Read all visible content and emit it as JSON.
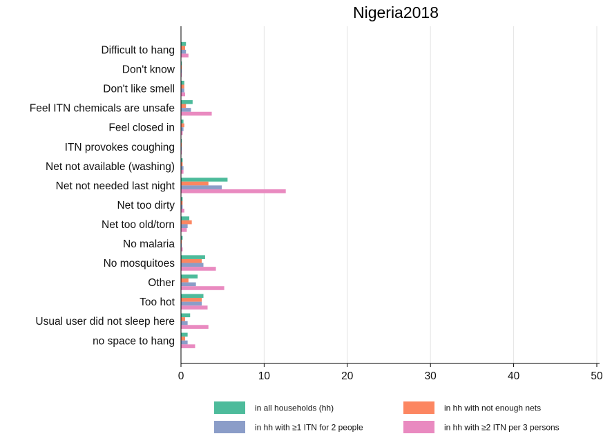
{
  "chart_data": {
    "type": "bar",
    "orientation": "horizontal",
    "title": "Nigeria2018",
    "xlabel": "",
    "ylabel": "",
    "xlim": [
      0,
      52
    ],
    "xticks": [
      0,
      10,
      20,
      30,
      40,
      50
    ],
    "grid": "vertical",
    "legend_position": "bottom",
    "categories": [
      "Difficult to hang",
      "Don't know",
      "Don't like smell",
      "Feel ITN chemicals are unsafe",
      "Feel closed in",
      "ITN provokes coughing",
      "Net not available (washing)",
      "Net not needed last night",
      "Net too dirty",
      "Net too old/torn",
      "No malaria",
      "No mosquitoes",
      "Other",
      "Too hot",
      "Usual user did not sleep here",
      "no space to hang"
    ],
    "series": [
      {
        "name": "in all households (hh)",
        "color": "#4dbb9b",
        "values": [
          0.6,
          0.1,
          0.4,
          1.4,
          0.3,
          0.1,
          0.2,
          5.6,
          0.2,
          1.0,
          0.2,
          2.9,
          2.0,
          2.7,
          1.1,
          0.8
        ]
      },
      {
        "name": "in hh with not enough nets",
        "color": "#fc8661",
        "values": [
          0.5,
          0.1,
          0.4,
          0.6,
          0.4,
          0.1,
          0.2,
          3.3,
          0.2,
          1.3,
          0.1,
          2.5,
          0.9,
          2.5,
          0.5,
          0.5
        ]
      },
      {
        "name": "in hh with ≥1 ITN for 2 people",
        "color": "#8b9dc8",
        "values": [
          0.6,
          0.1,
          0.4,
          1.2,
          0.3,
          0.1,
          0.3,
          4.9,
          0.2,
          0.8,
          0.1,
          2.7,
          1.8,
          2.5,
          0.8,
          0.8
        ]
      },
      {
        "name": "in hh with ≥2 ITN per 3 persons",
        "color": "#e98ac0",
        "values": [
          0.9,
          0.1,
          0.5,
          3.7,
          0.2,
          0.1,
          0.3,
          12.6,
          0.4,
          0.7,
          0.2,
          4.2,
          5.2,
          3.2,
          3.3,
          1.7
        ]
      }
    ]
  }
}
